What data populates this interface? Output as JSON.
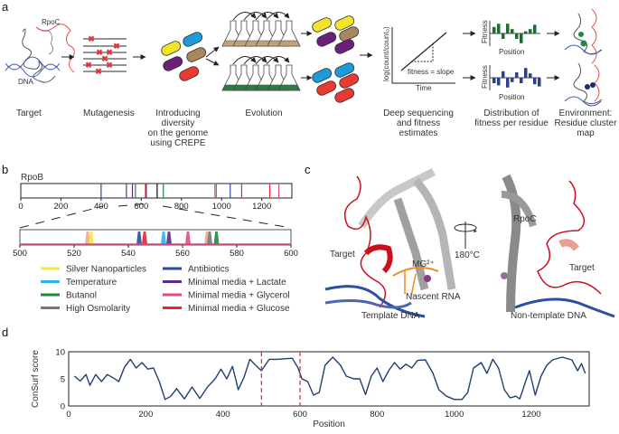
{
  "panels": {
    "a": {
      "letter": "a",
      "steps": [
        "Target",
        "Mutagenesis",
        "Introducing",
        "diversity",
        "on the genome",
        "using CREPE",
        "Evolution",
        "Deep sequencing",
        "and fitness",
        "estimates",
        "Distribution of",
        "fitness per residue",
        "Environment:",
        "Residue cluster",
        "map"
      ],
      "labels": {
        "rpoc": "RpoC",
        "dna": "DNA",
        "fitness_slope": "fitness = slope",
        "time": "Time",
        "log_axis": "log(count/count₀)",
        "fitness": "Fitness",
        "position": "Position"
      },
      "fitness_bars_top": [
        0.6,
        0.9,
        -0.5,
        0.9,
        0.4,
        -0.5,
        -0.9,
        0.2,
        0.4,
        0.8
      ],
      "fitness_bars_bottom": [
        -0.5,
        -0.7,
        0.6,
        -0.9,
        -0.4,
        0.5,
        -0.5,
        0.9,
        0.4,
        -0.6,
        -0.8
      ],
      "colors": {
        "green": "#1e6b34",
        "blue": "#2a3f8f",
        "red": "#e8323c"
      }
    },
    "b": {
      "letter": "b"
    },
    "c": {
      "letter": "c",
      "labels": {
        "target_left": "Target",
        "mg": "MG²⁺",
        "nascent_rna": "Nascent RNA",
        "template_dna": "Template DNA",
        "rotation": "180°C",
        "rpoc": "RpoC",
        "target_right": "Target",
        "non_template_dna": "Non-template DNA"
      }
    },
    "d": {
      "letter": "d"
    }
  },
  "chart_data": [
    {
      "type": "bar",
      "title": "RpoB",
      "xlim": [
        0,
        1350
      ],
      "xticks": [
        0,
        200,
        400,
        600,
        800,
        1000,
        1200
      ],
      "mutations": [
        {
          "position": 400,
          "condition": "Antibiotics"
        },
        {
          "position": 526,
          "condition": "Antibiotics"
        },
        {
          "position": 556,
          "condition": "Minimal media + Lactate"
        },
        {
          "position": 571,
          "condition": "Butanol"
        },
        {
          "position": 621,
          "condition": "Minimal media + Glucose"
        },
        {
          "position": 625,
          "condition": "Antibiotics"
        },
        {
          "position": 679,
          "condition": "black"
        },
        {
          "position": 710,
          "condition": "Butanol"
        },
        {
          "position": 966,
          "condition": "Temperature"
        },
        {
          "position": 973,
          "condition": "Minimal media + Glucose"
        },
        {
          "position": 1043,
          "condition": "Antibiotics"
        },
        {
          "position": 1100,
          "condition": "Minimal media + Glucose"
        },
        {
          "position": 1240,
          "condition": "Minimal media + Glucose"
        },
        {
          "position": 1285,
          "condition": "Minimal media + Glycerol"
        }
      ]
    },
    {
      "type": "bar",
      "xlim": [
        500,
        600
      ],
      "xticks": [
        500,
        520,
        540,
        560,
        580,
        600
      ],
      "peaks": [
        {
          "position": 525,
          "condition": "salmon"
        },
        {
          "position": 526.3,
          "condition": "Silver Nanoparticles"
        },
        {
          "position": 544,
          "condition": "Antibiotics"
        },
        {
          "position": 546,
          "condition": "Minimal media + Glucose"
        },
        {
          "position": 553,
          "condition": "Temperature"
        },
        {
          "position": 555,
          "condition": "Minimal media + Lactate"
        },
        {
          "position": 562,
          "condition": "Minimal media + Glycerol"
        },
        {
          "position": 569,
          "condition": "salmon"
        },
        {
          "position": 570,
          "condition": "High Osmolarity"
        },
        {
          "position": 572.5,
          "condition": "Butanol"
        }
      ],
      "legend": [
        {
          "name": "Silver Nanoparticles",
          "color": "#f2ea3c"
        },
        {
          "name": "Antibiotics",
          "color": "#2c4aa0"
        },
        {
          "name": "Temperature",
          "color": "#29b6e8"
        },
        {
          "name": "Minimal media + Lactate",
          "color": "#5b2a86"
        },
        {
          "name": "Butanol",
          "color": "#1f8a3f"
        },
        {
          "name": "Minimal media + Glycerol",
          "color": "#e8468a"
        },
        {
          "name": "High Osmolarity",
          "color": "#777777"
        },
        {
          "name": "Minimal media + Glucose",
          "color": "#e8262f"
        }
      ],
      "extra_colors": {
        "black": "#111111",
        "salmon": "#f0a890"
      }
    },
    {
      "type": "line",
      "xlabel": "Position",
      "ylabel": "ConSurf score",
      "xlim": [
        0,
        1350
      ],
      "ylim": [
        0,
        10
      ],
      "xticks": [
        0,
        200,
        400,
        600,
        800,
        1000,
        1200
      ],
      "yticks": [
        0,
        5,
        10
      ],
      "vlines": [
        500,
        600
      ],
      "color": "#1f3f73",
      "vline_color": "#e8262f",
      "x": [
        15,
        30,
        45,
        55,
        70,
        85,
        100,
        115,
        130,
        145,
        160,
        175,
        190,
        205,
        220,
        235,
        250,
        265,
        280,
        300,
        320,
        340,
        360,
        380,
        395,
        410,
        425,
        440,
        455,
        470,
        485,
        500,
        520,
        540,
        560,
        580,
        595,
        605,
        620,
        635,
        650,
        665,
        685,
        705,
        720,
        740,
        755,
        770,
        785,
        800,
        815,
        830,
        845,
        860,
        875,
        890,
        905,
        925,
        945,
        960,
        980,
        1000,
        1020,
        1035,
        1050,
        1070,
        1085,
        1100,
        1115,
        1130,
        1145,
        1160,
        1170,
        1185,
        1195,
        1210,
        1225,
        1240,
        1255,
        1280,
        1305,
        1320,
        1330,
        1340
      ],
      "y": [
        5.5,
        4.6,
        5.8,
        3.8,
        5.8,
        4.5,
        5.8,
        5.2,
        4.5,
        7.2,
        8.6,
        7.0,
        8.0,
        6.8,
        7.0,
        4.5,
        1.2,
        1.8,
        3.2,
        1.3,
        3.5,
        1.4,
        3.5,
        5.0,
        6.8,
        5.0,
        7.3,
        3.0,
        5.3,
        8.6,
        7.5,
        6.5,
        8.6,
        8.6,
        8.7,
        8.8,
        7.0,
        5.0,
        4.5,
        2.0,
        2.5,
        7.5,
        9.0,
        7.5,
        5.5,
        5.0,
        5.0,
        2.1,
        5.5,
        7.0,
        4.5,
        6.5,
        8.0,
        6.8,
        7.7,
        7.0,
        8.4,
        8.5,
        6.0,
        3.0,
        1.8,
        1.2,
        1.2,
        2.5,
        7.0,
        8.0,
        6.0,
        8.6,
        7.0,
        3.0,
        1.5,
        1.8,
        1.3,
        4.5,
        6.5,
        2.0,
        5.5,
        7.5,
        8.5,
        9.0,
        8.5,
        6.5,
        7.8,
        6.0
      ]
    }
  ]
}
